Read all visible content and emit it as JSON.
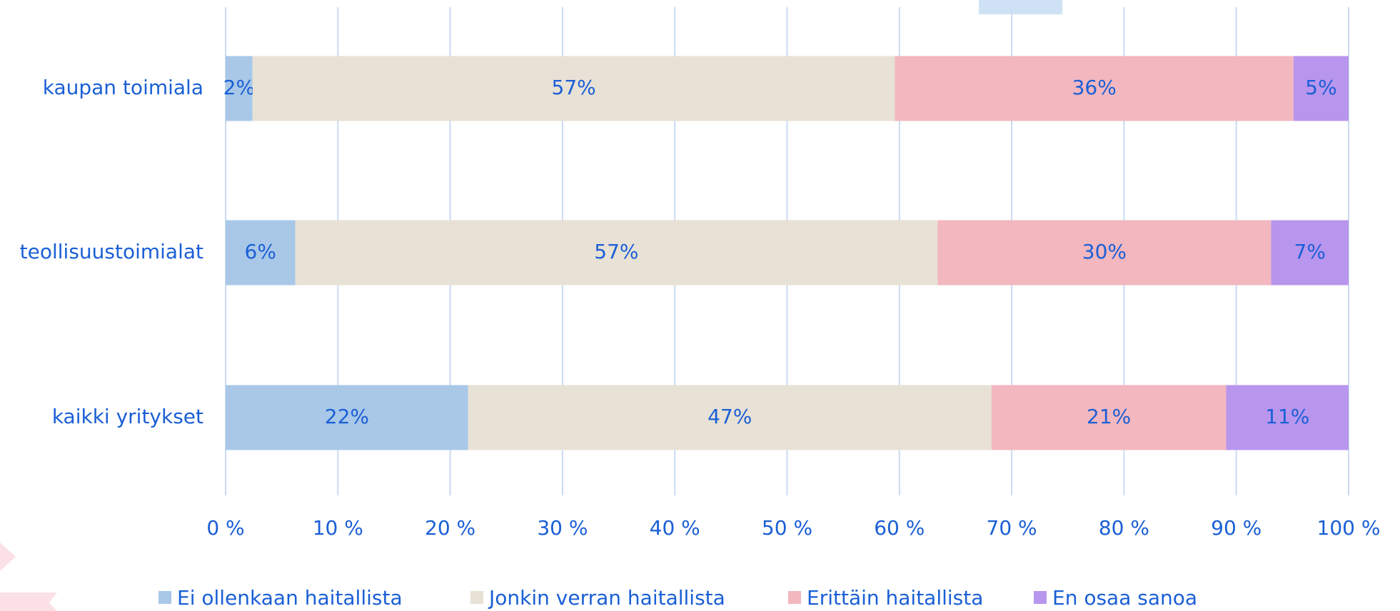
{
  "chart_data": {
    "type": "stacked_barh",
    "categories": [
      "kaupan toimiala",
      "teollisuustoimialat",
      "kaikki yritykset"
    ],
    "series": [
      {
        "name": "Ei ollenkaan haitallista",
        "color": "#a9c8e8",
        "values": [
          2.4,
          6.2,
          21.6
        ],
        "value_labels": [
          "2%",
          "6%",
          "22%"
        ]
      },
      {
        "name": "Jonkin verran haitallista",
        "color": "#e8e1d5",
        "values": [
          57.2,
          57.2,
          46.6
        ],
        "value_labels": [
          "57%",
          "57%",
          "47%"
        ]
      },
      {
        "name": "Erittäin haitallista",
        "color": "#f2b7bf",
        "values": [
          35.5,
          29.7,
          20.9
        ],
        "value_labels": [
          "36%",
          "30%",
          "21%"
        ]
      },
      {
        "name": "En osaa sanoa",
        "color": "#b896ed",
        "values": [
          4.9,
          6.9,
          10.9
        ],
        "value_labels": [
          "5%",
          "7%",
          "11%"
        ]
      }
    ],
    "xlim": [
      0,
      100
    ],
    "xticks": [
      {
        "value": 0,
        "label": "0 %"
      },
      {
        "value": 10,
        "label": "10 %"
      },
      {
        "value": 20,
        "label": "20 %"
      },
      {
        "value": 30,
        "label": "30 %"
      },
      {
        "value": 40,
        "label": "40 %"
      },
      {
        "value": 50,
        "label": "50 %"
      },
      {
        "value": 60,
        "label": "60 %"
      },
      {
        "value": 70,
        "label": "70 %"
      },
      {
        "value": 80,
        "label": "80 %"
      },
      {
        "value": 90,
        "label": "90 %"
      },
      {
        "value": 100,
        "label": "100 %"
      }
    ],
    "grid": true,
    "legend": "bottom"
  }
}
